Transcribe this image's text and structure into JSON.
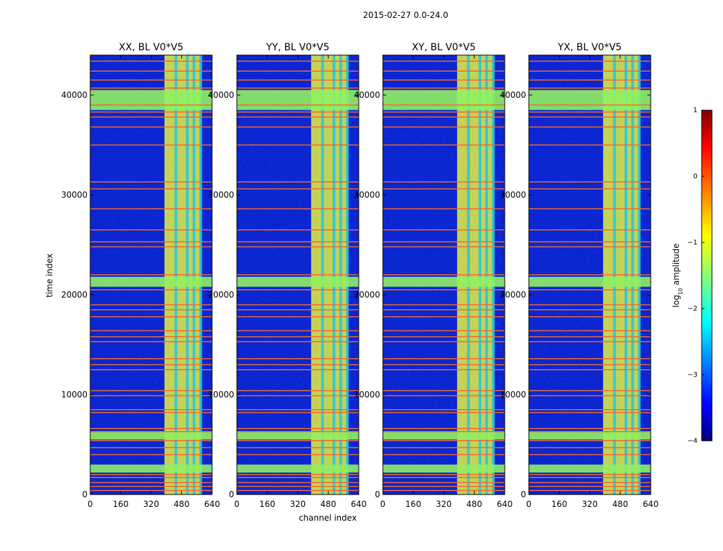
{
  "chart_data": {
    "type": "heatmap",
    "suptitle": "2015-02-27 0.0-24.0",
    "xlabel": "channel index",
    "ylabel": "time index",
    "xlim": [
      0,
      640
    ],
    "ylim": [
      0,
      44000
    ],
    "xticks": [
      0,
      160,
      320,
      480,
      640
    ],
    "yticks": [
      0,
      10000,
      20000,
      30000,
      40000
    ],
    "panels": [
      {
        "title": "XX, BL V0*V5"
      },
      {
        "title": "YY, BL V0*V5"
      },
      {
        "title": "XY, BL V0*V5"
      },
      {
        "title": "YX, BL V0*V5"
      }
    ],
    "colorbar": {
      "label_prefix": "log",
      "label_sub": "10",
      "label_suffix": " amplitude",
      "range": [
        -4,
        1
      ],
      "ticks": [
        1,
        0,
        -1,
        -2,
        -3,
        -4
      ],
      "tick_labels": [
        "1",
        "0",
        "−1",
        "−2",
        "−3",
        "−4"
      ],
      "colormap": "jet"
    },
    "colors": {
      "background_low": "#0a22d0",
      "mid": "#25c8e0",
      "high_band": "#e8f040",
      "flag_line": "#f06a30",
      "flag_band": "#90f060"
    },
    "flag_lines_time": [
      400,
      800,
      1200,
      1700,
      2000,
      4000,
      4700,
      5400,
      6300,
      6600,
      8200,
      8500,
      9900,
      10400,
      12500,
      13000,
      13600,
      15300,
      15800,
      16400,
      17800,
      18500,
      19000,
      20500,
      22000,
      24800,
      25300,
      26500,
      28600,
      30600,
      31300,
      35000,
      36800,
      37800,
      38300,
      39000,
      40700,
      41500,
      42400,
      43400
    ],
    "flag_bands_time": [
      [
        2200,
        3000
      ],
      [
        5500,
        6300
      ],
      [
        20800,
        21800
      ],
      [
        38500,
        40500
      ]
    ],
    "bright_channel_band": [
      390,
      580
    ],
    "bright_channel_columns": [
      450,
      510,
      545,
      580
    ]
  }
}
